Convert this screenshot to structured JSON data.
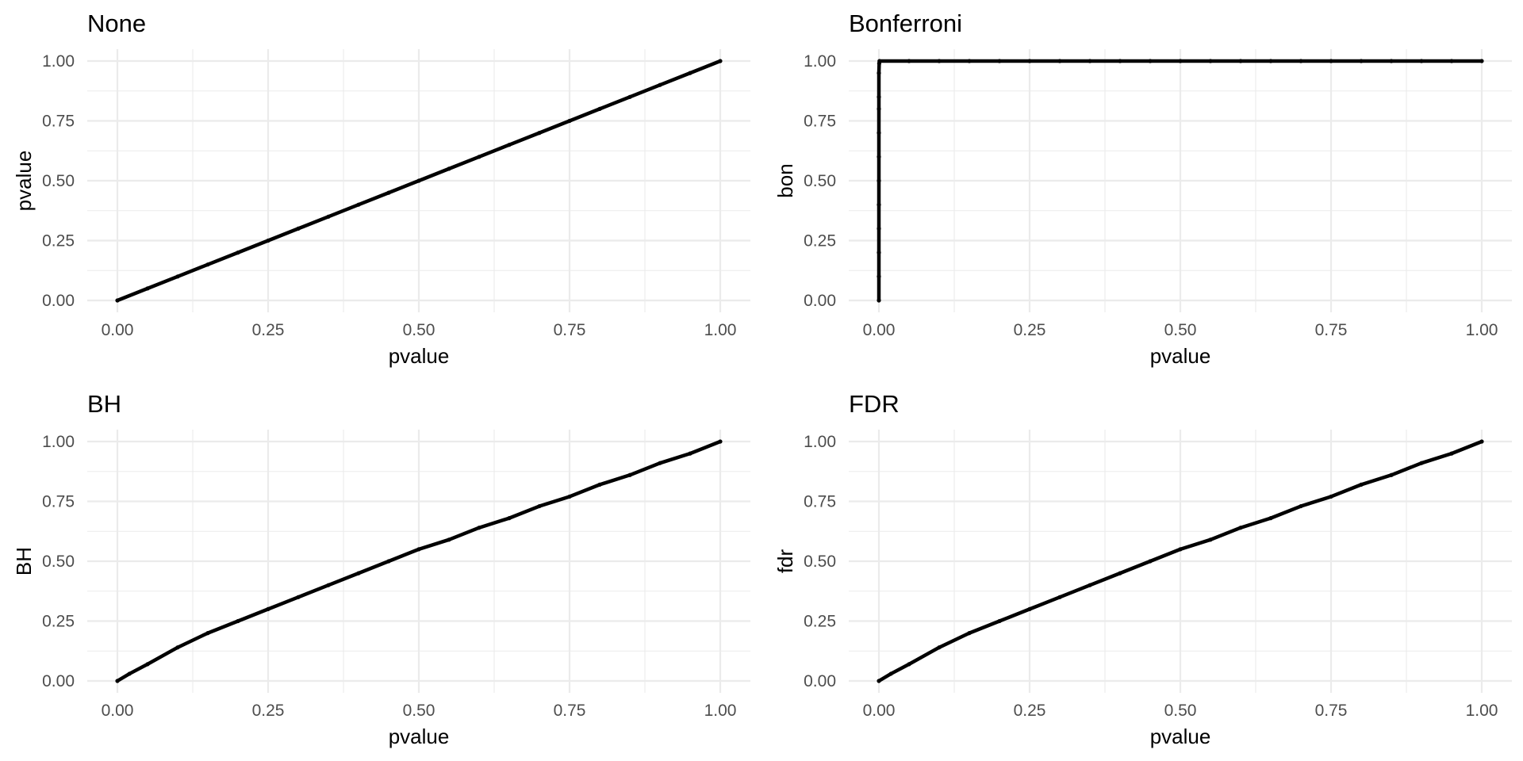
{
  "chart_data": [
    {
      "type": "scatter",
      "title": "None",
      "xlabel": "pvalue",
      "ylabel": "pvalue",
      "xlim": [
        0,
        1
      ],
      "ylim": [
        0,
        1
      ],
      "x_ticks": [
        "0.00",
        "0.25",
        "0.50",
        "0.75",
        "1.00"
      ],
      "y_ticks": [
        "0.00",
        "0.25",
        "0.50",
        "0.75",
        "1.00"
      ],
      "grid": true,
      "point_color": "#000000",
      "points": {
        "x": [
          0.0,
          0.05,
          0.1,
          0.15,
          0.2,
          0.25,
          0.3,
          0.35,
          0.4,
          0.45,
          0.5,
          0.55,
          0.6,
          0.65,
          0.7,
          0.75,
          0.8,
          0.85,
          0.9,
          0.95,
          1.0
        ],
        "y": [
          0.0,
          0.05,
          0.1,
          0.15,
          0.2,
          0.25,
          0.3,
          0.35,
          0.4,
          0.45,
          0.5,
          0.55,
          0.6,
          0.65,
          0.7,
          0.75,
          0.8,
          0.85,
          0.9,
          0.95,
          1.0
        ]
      }
    },
    {
      "type": "scatter",
      "title": "Bonferroni",
      "xlabel": "pvalue",
      "ylabel": "bon",
      "xlim": [
        0,
        1
      ],
      "ylim": [
        0,
        1
      ],
      "x_ticks": [
        "0.00",
        "0.25",
        "0.50",
        "0.75",
        "1.00"
      ],
      "y_ticks": [
        "0.00",
        "0.25",
        "0.50",
        "0.75",
        "1.00"
      ],
      "grid": true,
      "point_color": "#000000",
      "points": {
        "x": [
          0.0,
          0.0,
          0.0,
          0.0,
          0.0,
          0.0,
          0.0,
          0.0,
          0.0,
          0.0,
          0.0,
          0.0005,
          0.001,
          0.05,
          0.1,
          0.15,
          0.2,
          0.25,
          0.3,
          0.35,
          0.4,
          0.45,
          0.5,
          0.55,
          0.6,
          0.65,
          0.7,
          0.75,
          0.8,
          0.85,
          0.9,
          0.95,
          1.0
        ],
        "y": [
          0.0,
          0.1,
          0.2,
          0.3,
          0.4,
          0.5,
          0.6,
          0.7,
          0.8,
          0.85,
          0.95,
          0.99,
          1.0,
          1.0,
          1.0,
          1.0,
          1.0,
          1.0,
          1.0,
          1.0,
          1.0,
          1.0,
          1.0,
          1.0,
          1.0,
          1.0,
          1.0,
          1.0,
          1.0,
          1.0,
          1.0,
          1.0,
          1.0
        ]
      }
    },
    {
      "type": "scatter",
      "title": "BH",
      "xlabel": "pvalue",
      "ylabel": "BH",
      "xlim": [
        0,
        1
      ],
      "ylim": [
        0,
        1
      ],
      "x_ticks": [
        "0.00",
        "0.25",
        "0.50",
        "0.75",
        "1.00"
      ],
      "y_ticks": [
        "0.00",
        "0.25",
        "0.50",
        "0.75",
        "1.00"
      ],
      "grid": true,
      "point_color": "#000000",
      "points": {
        "x": [
          0.0,
          0.02,
          0.05,
          0.1,
          0.15,
          0.2,
          0.25,
          0.3,
          0.35,
          0.4,
          0.45,
          0.5,
          0.55,
          0.6,
          0.65,
          0.7,
          0.75,
          0.8,
          0.85,
          0.9,
          0.95,
          1.0
        ],
        "y": [
          0.0,
          0.03,
          0.07,
          0.14,
          0.2,
          0.25,
          0.3,
          0.35,
          0.4,
          0.45,
          0.5,
          0.55,
          0.59,
          0.64,
          0.68,
          0.73,
          0.77,
          0.82,
          0.86,
          0.91,
          0.95,
          1.0
        ]
      }
    },
    {
      "type": "scatter",
      "title": "FDR",
      "xlabel": "pvalue",
      "ylabel": "fdr",
      "xlim": [
        0,
        1
      ],
      "ylim": [
        0,
        1
      ],
      "x_ticks": [
        "0.00",
        "0.25",
        "0.50",
        "0.75",
        "1.00"
      ],
      "y_ticks": [
        "0.00",
        "0.25",
        "0.50",
        "0.75",
        "1.00"
      ],
      "grid": true,
      "point_color": "#000000",
      "points": {
        "x": [
          0.0,
          0.02,
          0.05,
          0.1,
          0.15,
          0.2,
          0.25,
          0.3,
          0.35,
          0.4,
          0.45,
          0.5,
          0.55,
          0.6,
          0.65,
          0.7,
          0.75,
          0.8,
          0.85,
          0.9,
          0.95,
          1.0
        ],
        "y": [
          0.0,
          0.03,
          0.07,
          0.14,
          0.2,
          0.25,
          0.3,
          0.35,
          0.4,
          0.45,
          0.5,
          0.55,
          0.59,
          0.64,
          0.68,
          0.73,
          0.77,
          0.82,
          0.86,
          0.91,
          0.95,
          1.0
        ]
      }
    }
  ]
}
